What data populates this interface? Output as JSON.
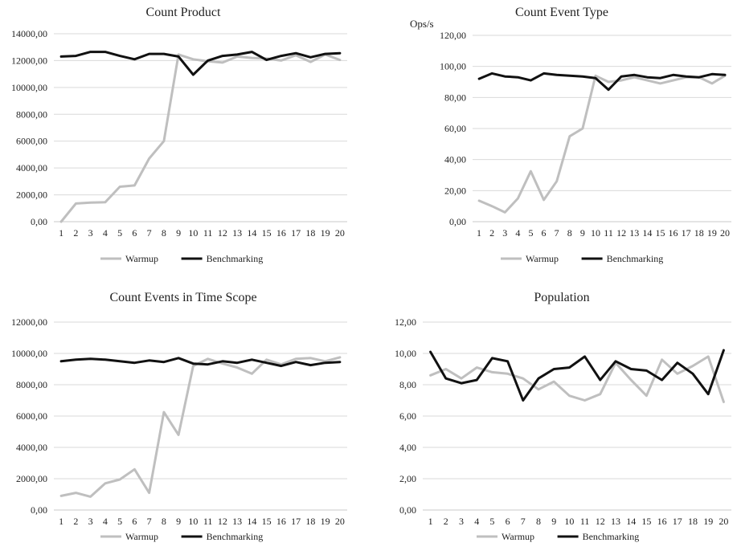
{
  "colors": {
    "warmup": "#bfbfbf",
    "benchmarking": "#111111",
    "grid": "#d9d9d9",
    "axis": "#c8c8c8"
  },
  "chart_data": [
    {
      "type": "line",
      "title": "Count Product",
      "ylabel": "",
      "ylim": [
        0,
        14000
      ],
      "yticks": [
        "0,00",
        "2000,00",
        "4000,00",
        "6000,00",
        "8000,00",
        "10000,00",
        "12000,00",
        "14000,00"
      ],
      "categories": [
        "1",
        "2",
        "3",
        "4",
        "5",
        "6",
        "7",
        "8",
        "9",
        "10",
        "11",
        "12",
        "13",
        "14",
        "15",
        "16",
        "17",
        "18",
        "19",
        "20"
      ],
      "legend_position": "bottom",
      "series": [
        {
          "name": "Warmup",
          "color": "#bfbfbf",
          "values": [
            0,
            1350,
            1420,
            1450,
            2600,
            2700,
            4700,
            6000,
            12450,
            12100,
            11950,
            11850,
            12300,
            12200,
            12150,
            12000,
            12400,
            11900,
            12450,
            12050
          ]
        },
        {
          "name": "Benchmarking",
          "color": "#111111",
          "values": [
            12300,
            12350,
            12650,
            12650,
            12350,
            12100,
            12500,
            12500,
            12300,
            10950,
            12000,
            12350,
            12450,
            12650,
            12050,
            12350,
            12550,
            12250,
            12500,
            12550
          ]
        }
      ]
    },
    {
      "type": "line",
      "title": "Count Event Type",
      "ylabel": "Ops/s",
      "ylim": [
        0,
        120
      ],
      "yticks": [
        "0,00",
        "20,00",
        "40,00",
        "60,00",
        "80,00",
        "100,00",
        "120,00"
      ],
      "categories": [
        "1",
        "2",
        "3",
        "4",
        "5",
        "6",
        "7",
        "8",
        "9",
        "10",
        "11",
        "12",
        "13",
        "14",
        "15",
        "16",
        "17",
        "18",
        "19",
        "20"
      ],
      "legend_position": "bottom",
      "series": [
        {
          "name": "Warmup",
          "color": "#bfbfbf",
          "values": [
            13.5,
            10,
            6,
            15,
            32.5,
            14,
            26,
            55,
            60,
            94,
            90,
            91,
            93,
            91,
            89,
            91,
            93,
            93,
            89,
            94
          ]
        },
        {
          "name": "Benchmarking",
          "color": "#111111",
          "values": [
            92,
            95.5,
            93.5,
            93,
            91,
            95.5,
            94.5,
            94,
            93.5,
            92.5,
            85,
            93.5,
            94.5,
            93,
            92.5,
            94.5,
            93.5,
            93,
            95,
            94.5
          ]
        }
      ]
    },
    {
      "type": "line",
      "title": "Count Events in Time Scope",
      "ylabel": "",
      "ylim": [
        0,
        12000
      ],
      "yticks": [
        "0,00",
        "2000,00",
        "4000,00",
        "6000,00",
        "8000,00",
        "10000,00",
        "12000,00"
      ],
      "categories": [
        "1",
        "2",
        "3",
        "4",
        "5",
        "6",
        "7",
        "8",
        "9",
        "10",
        "11",
        "12",
        "13",
        "14",
        "15",
        "16",
        "17",
        "18",
        "19",
        "20"
      ],
      "legend_position": "bottom",
      "series": [
        {
          "name": "Warmup",
          "color": "#bfbfbf",
          "values": [
            900,
            1100,
            850,
            1700,
            1950,
            2600,
            1100,
            6250,
            4800,
            9200,
            9650,
            9350,
            9100,
            8700,
            9600,
            9300,
            9650,
            9700,
            9500,
            9750
          ]
        },
        {
          "name": "Benchmarking",
          "color": "#111111",
          "values": [
            9500,
            9600,
            9650,
            9600,
            9500,
            9400,
            9550,
            9450,
            9700,
            9350,
            9300,
            9500,
            9400,
            9600,
            9400,
            9200,
            9450,
            9250,
            9400,
            9450
          ]
        }
      ]
    },
    {
      "type": "line",
      "title": "Population",
      "ylabel": "",
      "ylim": [
        0,
        12
      ],
      "yticks": [
        "0,00",
        "2,00",
        "4,00",
        "6,00",
        "8,00",
        "10,00",
        "12,00"
      ],
      "categories": [
        "1",
        "2",
        "3",
        "4",
        "5",
        "6",
        "7",
        "8",
        "9",
        "10",
        "11",
        "12",
        "13",
        "14",
        "15",
        "16",
        "17",
        "18",
        "19",
        "20"
      ],
      "legend_position": "bottom",
      "series": [
        {
          "name": "Warmup",
          "color": "#bfbfbf",
          "values": [
            8.6,
            9.0,
            8.4,
            9.1,
            8.8,
            8.7,
            8.4,
            7.7,
            8.2,
            7.3,
            7.0,
            7.4,
            9.4,
            8.3,
            7.3,
            9.6,
            8.7,
            9.2,
            9.8,
            6.9
          ]
        },
        {
          "name": "Benchmarking",
          "color": "#111111",
          "values": [
            10.1,
            8.4,
            8.1,
            8.3,
            9.7,
            9.5,
            7.0,
            8.4,
            9.0,
            9.1,
            9.8,
            8.3,
            9.5,
            9.0,
            8.9,
            8.3,
            9.4,
            8.7,
            7.4,
            10.2
          ]
        }
      ]
    }
  ]
}
